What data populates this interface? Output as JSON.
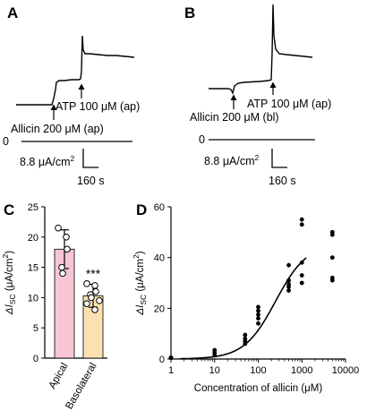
{
  "panels": {
    "A": {
      "label": "A",
      "annotations": {
        "allicin": "Allicin 200 μM (ap)",
        "atp": "ATP 100 μM (ap)"
      },
      "zero_label": "0",
      "scale": {
        "current": "8.8 μA/cm",
        "current_sup": "2",
        "time": "160 s"
      }
    },
    "B": {
      "label": "B",
      "annotations": {
        "allicin": "Allicin 200 μM (bl)",
        "atp": "ATP 100 μM (ap)"
      },
      "zero_label": "0",
      "scale": {
        "current": "8.8 μA/cm",
        "current_sup": "2",
        "time": "160 s"
      }
    },
    "C": {
      "label": "C"
    },
    "D": {
      "label": "D"
    }
  },
  "chart_data": [
    {
      "type": "bar",
      "panel": "C",
      "categories": [
        "Apical",
        "Basolateral"
      ],
      "values": [
        18.0,
        10.3
      ],
      "errors": [
        3.2,
        1.9
      ],
      "points": [
        [
          21.5,
          20.0,
          18.0,
          15.0,
          14.0
        ],
        [
          12.3,
          12.0,
          11.0,
          10.5,
          10.0,
          9.5,
          9.0,
          8.0
        ]
      ],
      "colors": [
        "#f7c6d2",
        "#fde1b3"
      ],
      "annotations": [
        {
          "category": "Basolateral",
          "text": "***"
        }
      ],
      "ylabel_symbol": "ΔI",
      "ylabel_sub": "SC",
      "ylabel_unit": " (μA/cm",
      "ylabel_sup": "2",
      "ylabel_close": ")",
      "ylim": [
        0,
        25
      ],
      "yticks": [
        "0",
        "5",
        "10",
        "15",
        "20",
        "25"
      ]
    },
    {
      "type": "scatter",
      "panel": "D",
      "xscale": "log",
      "xlabel": "Concentration of allicin (μM)",
      "ylabel_symbol": "ΔI",
      "ylabel_sub": "SC",
      "ylabel_unit": " (μA/cm",
      "ylabel_sup": "2",
      "ylabel_close": ")",
      "xlim": [
        1,
        10000
      ],
      "ylim": [
        0,
        60
      ],
      "xticks": [
        "1",
        "10",
        "100",
        "1000",
        "10000"
      ],
      "yticks": [
        "0",
        "20",
        "40",
        "60"
      ],
      "points": [
        {
          "x": 10,
          "y": 1.5
        },
        {
          "x": 10,
          "y": 2.5
        },
        {
          "x": 10,
          "y": 3.5
        },
        {
          "x": 50,
          "y": 6
        },
        {
          "x": 50,
          "y": 7
        },
        {
          "x": 50,
          "y": 8
        },
        {
          "x": 50,
          "y": 9.5
        },
        {
          "x": 100,
          "y": 14
        },
        {
          "x": 100,
          "y": 16
        },
        {
          "x": 100,
          "y": 17.5
        },
        {
          "x": 100,
          "y": 19
        },
        {
          "x": 100,
          "y": 20.5
        },
        {
          "x": 500,
          "y": 27
        },
        {
          "x": 500,
          "y": 28.5
        },
        {
          "x": 500,
          "y": 29.5
        },
        {
          "x": 500,
          "y": 31
        },
        {
          "x": 500,
          "y": 37
        },
        {
          "x": 1000,
          "y": 30
        },
        {
          "x": 1000,
          "y": 33
        },
        {
          "x": 1000,
          "y": 38
        },
        {
          "x": 1000,
          "y": 53
        },
        {
          "x": 1000,
          "y": 55
        },
        {
          "x": 5000,
          "y": 31
        },
        {
          "x": 5000,
          "y": 32
        },
        {
          "x": 5000,
          "y": 40
        },
        {
          "x": 5000,
          "y": 49
        },
        {
          "x": 5000,
          "y": 50
        }
      ],
      "fit": {
        "bottom": 0,
        "top": 45.6,
        "ec50": 250,
        "hill": 1.2
      }
    }
  ]
}
